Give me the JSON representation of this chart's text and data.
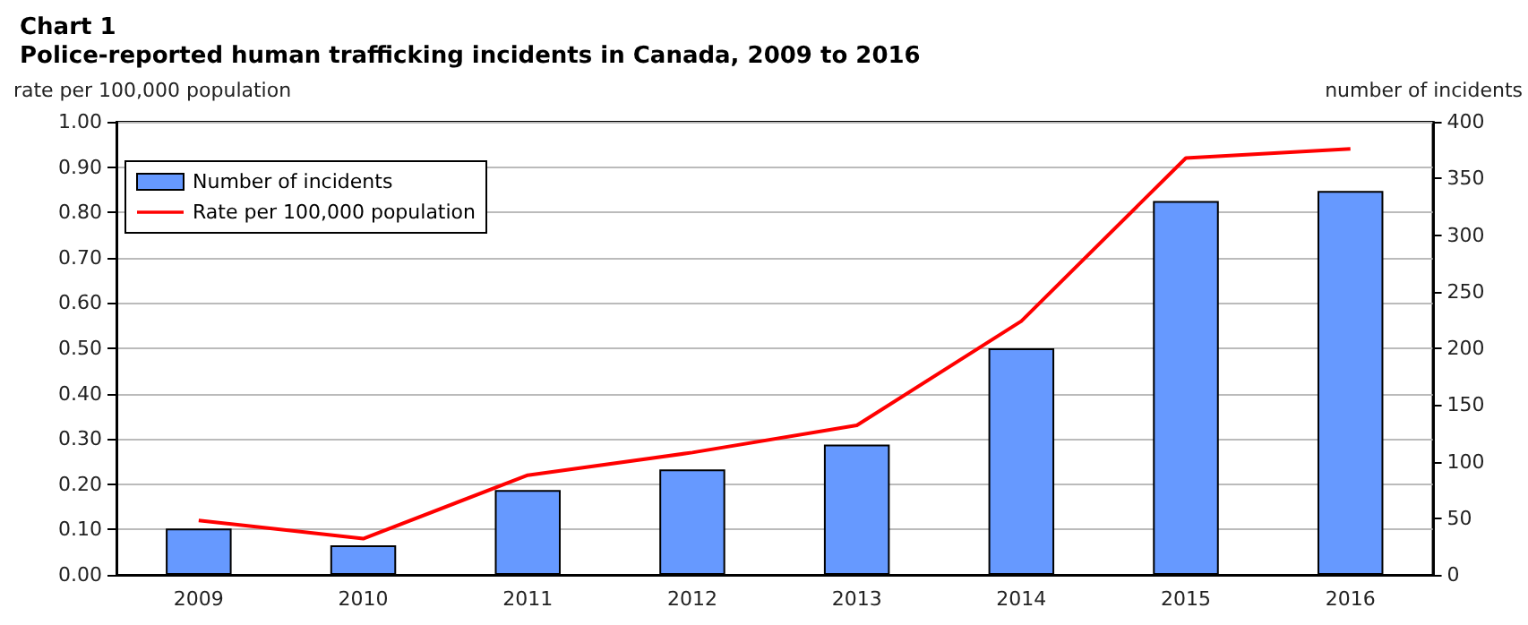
{
  "chart_data": {
    "type": "bar",
    "title": "Chart 1",
    "subtitle": "Police-reported human trafficking incidents in Canada, 2009 to 2016",
    "ylabel": "rate per 100,000 population",
    "y2label": "number of incidents",
    "categories": [
      "2009",
      "2010",
      "2011",
      "2012",
      "2013",
      "2014",
      "2015",
      "2016"
    ],
    "series": [
      {
        "name": "Number of incidents",
        "axis": "y2",
        "color": "#6699ff",
        "values": [
          41,
          26,
          75,
          93,
          115,
          200,
          330,
          339
        ]
      },
      {
        "name": "Rate per 100,000 population",
        "type": "line",
        "color": "#ff0000",
        "values": [
          0.12,
          0.08,
          0.22,
          0.27,
          0.33,
          0.56,
          0.92,
          0.94
        ]
      }
    ],
    "ylim": [
      0,
      1
    ],
    "yticks": [
      {
        "value": 0,
        "label": "0.00"
      },
      {
        "value": 0.1,
        "label": "0.10"
      },
      {
        "value": 0.2,
        "label": "0.20"
      },
      {
        "value": 0.3,
        "label": "0.30"
      },
      {
        "value": 0.4,
        "label": "0.40"
      },
      {
        "value": 0.5,
        "label": "0.50"
      },
      {
        "value": 0.6,
        "label": "0.60"
      },
      {
        "value": 0.7,
        "label": "0.70"
      },
      {
        "value": 0.8,
        "label": "0.80"
      },
      {
        "value": 0.9,
        "label": "0.90"
      },
      {
        "value": 1,
        "label": "1.00"
      }
    ],
    "y2lim": [
      0,
      400
    ],
    "y2ticks": [
      0,
      50,
      100,
      150,
      200,
      250,
      300,
      350,
      400
    ],
    "grid": "y",
    "legend": "top left",
    "marker": "none",
    "line_style": "solid"
  }
}
